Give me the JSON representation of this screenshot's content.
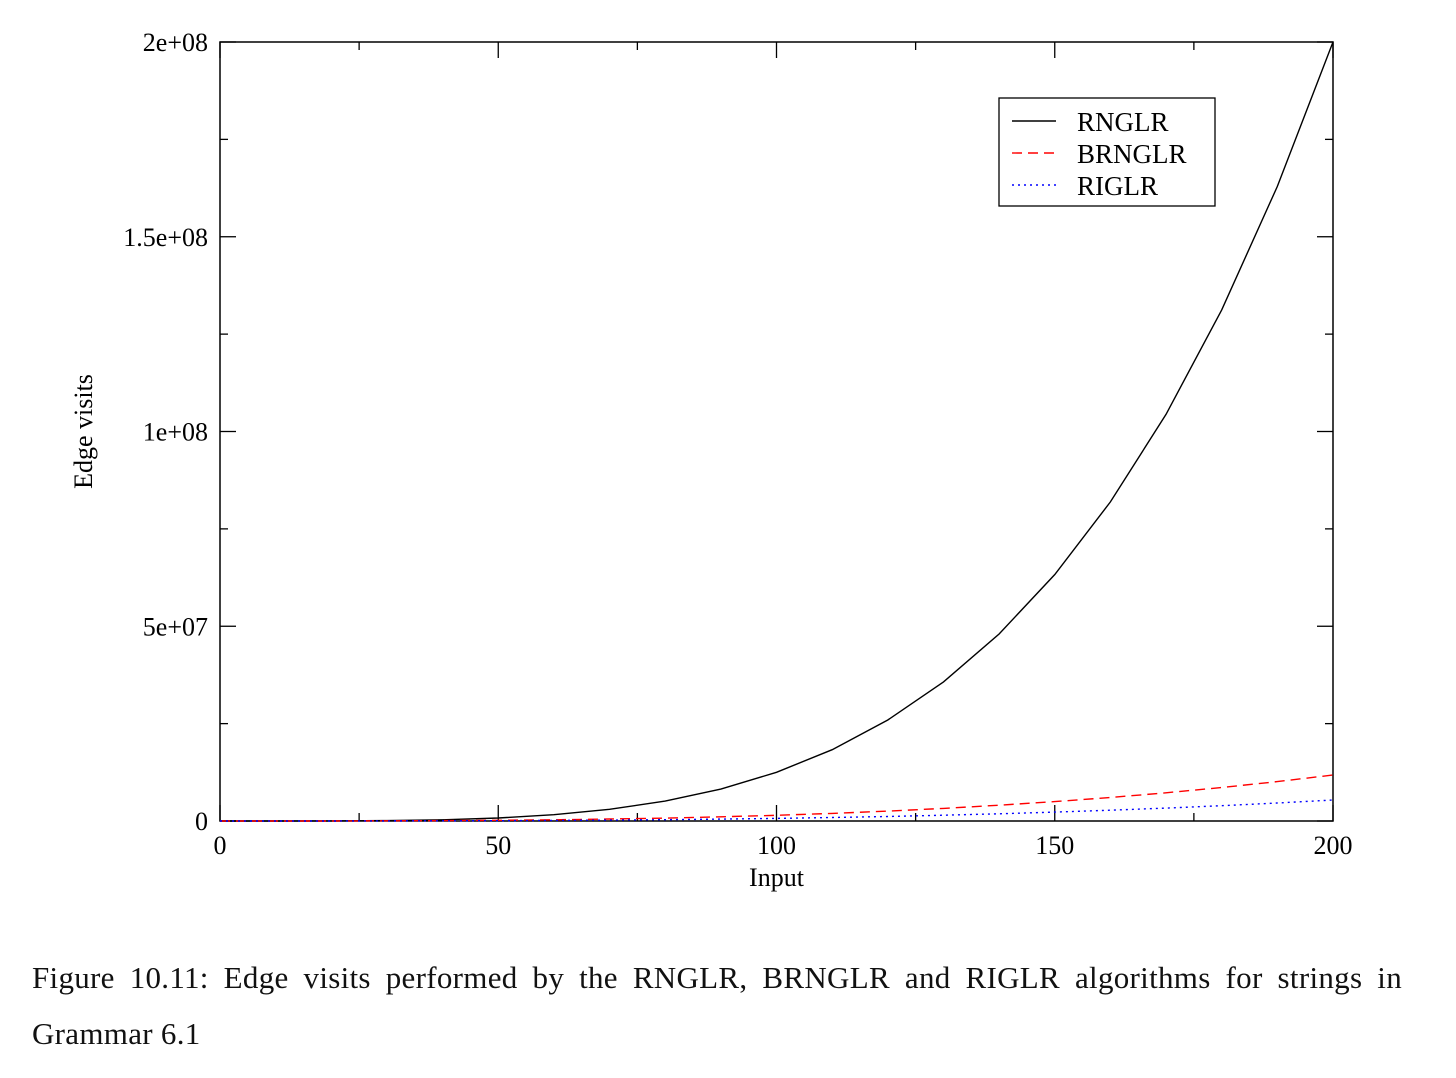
{
  "chart_data": {
    "type": "line",
    "title": "",
    "xlabel": "Input",
    "ylabel": "Edge visits",
    "xlim": [
      0,
      200
    ],
    "ylim": [
      0,
      200000000
    ],
    "xticks": [
      0,
      50,
      100,
      150,
      200
    ],
    "xtick_labels": [
      "0",
      "50",
      "100",
      "150",
      "200"
    ],
    "yticks": [
      0,
      50000000,
      100000000,
      150000000,
      200000000
    ],
    "ytick_labels": [
      "0",
      "5e+07",
      "1e+08",
      "1.5e+08",
      "2e+08"
    ],
    "grid": false,
    "legend_position": "top-right",
    "x": [
      0,
      10,
      20,
      30,
      40,
      50,
      60,
      70,
      80,
      90,
      100,
      110,
      120,
      130,
      140,
      150,
      160,
      170,
      180,
      190,
      200
    ],
    "series": [
      {
        "name": "RNGLR",
        "color": "#000000",
        "dash": "solid",
        "values": [
          0,
          1250,
          20000,
          101250,
          320000,
          781250,
          1620000,
          3001250,
          5120000,
          8201250,
          12500000,
          18301250,
          25920000,
          35701250,
          48020000,
          63281250,
          81920000,
          104401250,
          131220000,
          162901250,
          200000000
        ]
      },
      {
        "name": "BRNGLR",
        "color": "#ff0000",
        "dash": "dashed",
        "values": [
          0,
          1475,
          11800,
          39825,
          94400,
          184375,
          318600,
          505925,
          755200,
          1075275,
          1475000,
          1963225,
          2548800,
          3240575,
          4047400,
          4978125,
          6041600,
          7246175,
          8601200,
          10116725,
          11800000
        ]
      },
      {
        "name": "RIGLR",
        "color": "#0000ff",
        "dash": "dotted",
        "values": [
          0,
          675,
          5400,
          18225,
          43200,
          84375,
          145800,
          231525,
          345600,
          492075,
          675000,
          898425,
          1166400,
          1482975,
          1852200,
          2278125,
          2764800,
          3316275,
          3936600,
          4629825,
          5400000
        ]
      }
    ]
  },
  "caption": "Figure 10.11:  Edge visits performed by the RNGLR, BRNGLR and RIGLR algorithms for strings in Grammar 6.1"
}
